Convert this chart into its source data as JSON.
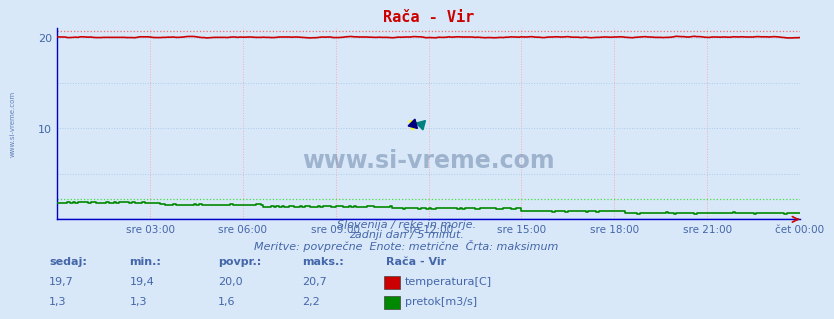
{
  "title": "Rača - Vir",
  "background_color": "#d8e8f8",
  "grid_color_v": "#ffaaaa",
  "grid_color_h": "#aaccee",
  "ylabel": "",
  "ylim": [
    0,
    21
  ],
  "yticks": [
    0,
    5,
    10,
    15,
    20
  ],
  "xlim": [
    0,
    288
  ],
  "xtick_labels": [
    "sre 03:00",
    "sre 06:00",
    "sre 09:00",
    "sre 12:00",
    "sre 15:00",
    "sre 18:00",
    "sre 21:00",
    "čet 00:00"
  ],
  "xtick_positions": [
    36,
    72,
    108,
    144,
    180,
    216,
    252,
    288
  ],
  "temp_color": "#cc0000",
  "temp_max_color": "#ff6666",
  "flow_color": "#008800",
  "flow_max_color": "#44dd44",
  "height_color": "#0000cc",
  "temp_value": "19,7",
  "temp_min": "19,4",
  "temp_avg": "20,0",
  "temp_max_val": "20,7",
  "flow_value": "1,3",
  "flow_min": "1,3",
  "flow_avg": "1,6",
  "flow_max_val": "2,2",
  "subtitle1": "Slovenija / reke in morje.",
  "subtitle2": "zadnji dan / 5 minut.",
  "subtitle3": "Meritve: povprečne  Enote: metrične  Črta: maksimum",
  "legend_title": "Rača - Vir",
  "text_color": "#4466aa",
  "watermark": "www.si-vreme.com",
  "watermark_color": "#1a3a6a",
  "left_label": "www.si-vreme.com"
}
